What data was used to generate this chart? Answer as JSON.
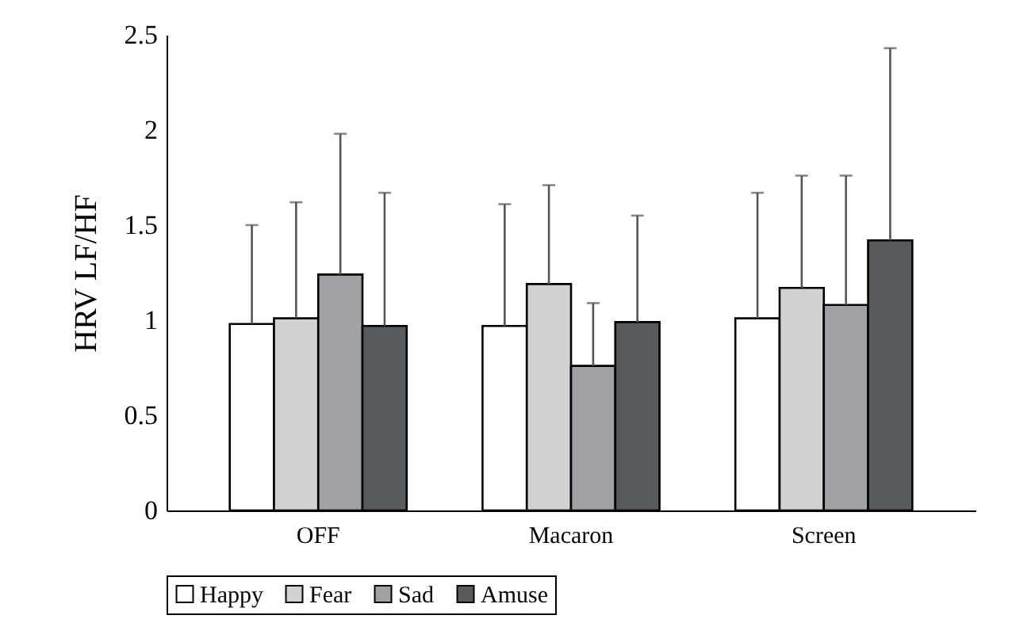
{
  "chart_data": {
    "type": "bar",
    "ylabel": "HRV LF/HF",
    "categories": [
      "OFF",
      "Macaron",
      "Screen"
    ],
    "series": [
      {
        "name": "Happy",
        "color": "#ffffff",
        "values": [
          0.98,
          0.97,
          1.01
        ],
        "errors": [
          [
            0.98,
            1.5
          ],
          [
            0.97,
            1.61
          ],
          [
            1.01,
            1.67
          ]
        ]
      },
      {
        "name": "Fear",
        "color": "#d0d1d3",
        "values": [
          1.01,
          1.19,
          1.17
        ],
        "errors": [
          [
            1.01,
            1.62
          ],
          [
            1.19,
            1.71
          ],
          [
            1.17,
            1.76
          ]
        ]
      },
      {
        "name": "Sad",
        "color": "#a0a1a5",
        "values": [
          1.24,
          0.76,
          1.08
        ],
        "errors": [
          [
            1.24,
            1.98
          ],
          [
            0.76,
            1.09
          ],
          [
            1.08,
            1.76
          ]
        ]
      },
      {
        "name": "Amuse",
        "color": "#585b5e",
        "values": [
          0.97,
          0.99,
          1.42
        ],
        "errors": [
          [
            0.97,
            1.67
          ],
          [
            0.99,
            1.55
          ],
          [
            1.42,
            2.43
          ]
        ]
      }
    ],
    "ylim": [
      0,
      2.5
    ],
    "yticks": [
      0,
      0.5,
      1,
      1.5,
      2,
      2.5
    ],
    "grid": false,
    "legend": "bottom"
  }
}
